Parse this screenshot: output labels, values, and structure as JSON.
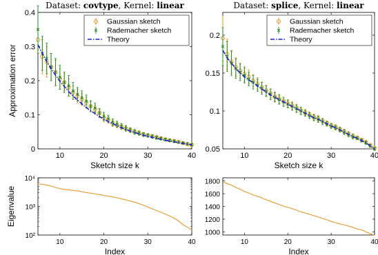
{
  "chart_data": [
    {
      "id": "covtype-error",
      "type": "line",
      "title_prefix": "Dataset: ",
      "title_dataset": "covtype",
      "title_mid": ",   Kernel: ",
      "title_kernel": "linear",
      "xlabel": "Sketch size k",
      "ylabel": "Approximation error",
      "xlim": [
        5,
        40
      ],
      "ylim": [
        0,
        0.4
      ],
      "xticks": [
        10,
        20,
        30,
        40
      ],
      "yticks": [
        0,
        0.1,
        0.2,
        0.3,
        0.4
      ],
      "ytick_labels": [
        "0",
        "0.1",
        "0.2",
        "0.3",
        "0.4"
      ],
      "legend_position": "top-right",
      "legend": [
        "Gaussian sketch",
        "Rademacher sketch",
        "Theory"
      ],
      "x": [
        5,
        6,
        7,
        8,
        9,
        10,
        11,
        12,
        13,
        14,
        15,
        16,
        17,
        18,
        19,
        20,
        21,
        22,
        23,
        24,
        25,
        26,
        27,
        28,
        29,
        30,
        31,
        32,
        33,
        34,
        35,
        36,
        37,
        38,
        39,
        40
      ],
      "series": [
        {
          "name": "Gaussian sketch",
          "values": [
            0.32,
            0.27,
            0.255,
            0.24,
            0.225,
            0.205,
            0.195,
            0.18,
            0.165,
            0.155,
            0.145,
            0.135,
            0.125,
            0.115,
            0.105,
            0.09,
            0.085,
            0.075,
            0.07,
            0.065,
            0.06,
            0.055,
            0.05,
            0.047,
            0.043,
            0.04,
            0.037,
            0.034,
            0.031,
            0.028,
            0.025,
            0.023,
            0.02,
            0.017,
            0.014,
            0.012
          ],
          "err": [
            0.03,
            0.05,
            0.045,
            0.04,
            0.035,
            0.03,
            0.025,
            0.025,
            0.02,
            0.02,
            0.018,
            0.016,
            0.015,
            0.013,
            0.012,
            0.011,
            0.01,
            0.009,
            0.008,
            0.008,
            0.007,
            0.007,
            0.006,
            0.006,
            0.005,
            0.005,
            0.005,
            0.004,
            0.004,
            0.004,
            0.004,
            0.003,
            0.003,
            0.003,
            0.003,
            0.003
          ]
        },
        {
          "name": "Rademacher sketch",
          "values": [
            0.35,
            0.28,
            0.265,
            0.24,
            0.225,
            0.21,
            0.195,
            0.185,
            0.17,
            0.16,
            0.15,
            0.14,
            0.125,
            0.12,
            0.105,
            0.095,
            0.088,
            0.078,
            0.072,
            0.066,
            0.06,
            0.055,
            0.05,
            0.046,
            0.042,
            0.039,
            0.036,
            0.033,
            0.03,
            0.027,
            0.025,
            0.022,
            0.02,
            0.017,
            0.015,
            0.012
          ],
          "err": [
            0.07,
            0.05,
            0.045,
            0.04,
            0.04,
            0.035,
            0.03,
            0.03,
            0.025,
            0.02,
            0.02,
            0.018,
            0.016,
            0.014,
            0.013,
            0.012,
            0.011,
            0.01,
            0.009,
            0.008,
            0.008,
            0.007,
            0.007,
            0.006,
            0.006,
            0.005,
            0.005,
            0.005,
            0.004,
            0.004,
            0.004,
            0.004,
            0.003,
            0.003,
            0.003,
            0.003
          ]
        },
        {
          "name": "Theory",
          "values": [
            0.305,
            0.28,
            0.256,
            0.235,
            0.216,
            0.198,
            0.183,
            0.168,
            0.155,
            0.143,
            0.132,
            0.121,
            0.112,
            0.103,
            0.095,
            0.087,
            0.08,
            0.074,
            0.068,
            0.062,
            0.057,
            0.052,
            0.048,
            0.044,
            0.04,
            0.037,
            0.034,
            0.031,
            0.028,
            0.025,
            0.023,
            0.021,
            0.018,
            0.016,
            0.014,
            0.012
          ]
        }
      ]
    },
    {
      "id": "splice-error",
      "type": "line",
      "title_prefix": "Dataset: ",
      "title_dataset": "splice",
      "title_mid": ",   Kernel: ",
      "title_kernel": "linear",
      "xlabel": "Sketch size k",
      "ylabel": "",
      "xlim": [
        5,
        40
      ],
      "ylim": [
        0.05,
        0.23
      ],
      "xticks": [
        10,
        20,
        30,
        40
      ],
      "yticks": [
        0.05,
        0.1,
        0.15,
        0.2
      ],
      "ytick_labels": [
        "0.05",
        "0.1",
        "0.15",
        "0.2"
      ],
      "legend_position": "top-right",
      "legend": [
        "Gaussian sketch",
        "Rademacher sketch",
        "Theory"
      ],
      "x": [
        5,
        6,
        7,
        8,
        9,
        10,
        11,
        12,
        13,
        14,
        15,
        16,
        17,
        18,
        19,
        20,
        21,
        22,
        23,
        24,
        25,
        26,
        27,
        28,
        29,
        30,
        31,
        32,
        33,
        34,
        35,
        36,
        37,
        38,
        39,
        40
      ],
      "series": [
        {
          "name": "Gaussian sketch",
          "values": [
            0.196,
            0.175,
            0.165,
            0.158,
            0.153,
            0.149,
            0.145,
            0.14,
            0.136,
            0.131,
            0.127,
            0.123,
            0.119,
            0.116,
            0.113,
            0.11,
            0.107,
            0.104,
            0.101,
            0.098,
            0.095,
            0.092,
            0.09,
            0.087,
            0.084,
            0.081,
            0.079,
            0.076,
            0.073,
            0.07,
            0.067,
            0.065,
            0.062,
            0.059,
            0.055,
            0.051
          ],
          "err": [
            0.03,
            0.02,
            0.015,
            0.012,
            0.01,
            0.01,
            0.009,
            0.008,
            0.008,
            0.007,
            0.007,
            0.006,
            0.006,
            0.006,
            0.005,
            0.005,
            0.005,
            0.005,
            0.004,
            0.004,
            0.004,
            0.004,
            0.004,
            0.003,
            0.003,
            0.003,
            0.003,
            0.003,
            0.003,
            0.003,
            0.003,
            0.002,
            0.002,
            0.002,
            0.002,
            0.002
          ]
        },
        {
          "name": "Rademacher sketch",
          "values": [
            0.185,
            0.172,
            0.163,
            0.156,
            0.151,
            0.147,
            0.142,
            0.138,
            0.134,
            0.13,
            0.126,
            0.122,
            0.118,
            0.115,
            0.112,
            0.109,
            0.106,
            0.103,
            0.1,
            0.097,
            0.094,
            0.091,
            0.089,
            0.086,
            0.083,
            0.08,
            0.078,
            0.075,
            0.072,
            0.069,
            0.066,
            0.064,
            0.061,
            0.058,
            0.054,
            0.05
          ],
          "err": [
            0.025,
            0.02,
            0.016,
            0.013,
            0.011,
            0.01,
            0.009,
            0.009,
            0.008,
            0.008,
            0.007,
            0.007,
            0.006,
            0.006,
            0.006,
            0.005,
            0.005,
            0.005,
            0.005,
            0.004,
            0.004,
            0.004,
            0.004,
            0.004,
            0.003,
            0.003,
            0.003,
            0.003,
            0.003,
            0.003,
            0.003,
            0.002,
            0.002,
            0.002,
            0.002,
            0.002
          ]
        },
        {
          "name": "Theory",
          "values": [
            0.18,
            0.17,
            0.163,
            0.156,
            0.15,
            0.145,
            0.141,
            0.137,
            0.133,
            0.129,
            0.125,
            0.121,
            0.118,
            0.115,
            0.112,
            0.109,
            0.106,
            0.103,
            0.1,
            0.097,
            0.094,
            0.091,
            0.089,
            0.086,
            0.083,
            0.08,
            0.078,
            0.075,
            0.072,
            0.069,
            0.066,
            0.064,
            0.061,
            0.058,
            0.054,
            0.05
          ]
        }
      ]
    },
    {
      "id": "covtype-eigen",
      "type": "line",
      "xlabel": "Index",
      "ylabel": "Eigenvalue",
      "xlim": [
        5,
        40
      ],
      "ylim": [
        100,
        10000
      ],
      "yscale": "log",
      "xticks": [
        10,
        20,
        30,
        40
      ],
      "yticks": [
        100,
        1000,
        10000
      ],
      "ytick_labels": [
        "10²",
        "10³",
        "10⁴"
      ],
      "x": [
        5,
        6,
        7,
        8,
        9,
        10,
        11,
        12,
        13,
        14,
        15,
        16,
        17,
        18,
        19,
        20,
        21,
        22,
        23,
        24,
        25,
        26,
        27,
        28,
        29,
        30,
        31,
        32,
        33,
        34,
        35,
        36,
        37,
        38,
        39,
        40
      ],
      "series": [
        {
          "values": [
            6100,
            5900,
            5600,
            5100,
            4600,
            4200,
            3900,
            3800,
            3600,
            3500,
            3250,
            3050,
            2900,
            2750,
            2600,
            2400,
            2300,
            2150,
            2000,
            1850,
            1700,
            1550,
            1400,
            1250,
            1100,
            950,
            830,
            720,
            620,
            540,
            460,
            390,
            310,
            230,
            190,
            150
          ]
        }
      ]
    },
    {
      "id": "splice-eigen",
      "type": "line",
      "xlabel": "Index",
      "ylabel": "",
      "xlim": [
        5,
        40
      ],
      "ylim": [
        950,
        1850
      ],
      "xticks": [
        10,
        20,
        30,
        40
      ],
      "yticks": [
        1000,
        1200,
        1400,
        1600,
        1800
      ],
      "ytick_labels": [
        "1000",
        "1200",
        "1400",
        "1600",
        "1800"
      ],
      "x": [
        5,
        6,
        7,
        8,
        9,
        10,
        11,
        12,
        13,
        14,
        15,
        16,
        17,
        18,
        19,
        20,
        21,
        22,
        23,
        24,
        25,
        26,
        27,
        28,
        29,
        30,
        31,
        32,
        33,
        34,
        35,
        36,
        37,
        38,
        39,
        40
      ],
      "series": [
        {
          "values": [
            1785,
            1760,
            1735,
            1700,
            1670,
            1635,
            1610,
            1580,
            1560,
            1535,
            1505,
            1480,
            1455,
            1430,
            1405,
            1385,
            1365,
            1340,
            1315,
            1295,
            1275,
            1255,
            1235,
            1210,
            1190,
            1165,
            1145,
            1125,
            1110,
            1090,
            1070,
            1045,
            1030,
            1000,
            970,
            945
          ]
        }
      ]
    }
  ],
  "colors": {
    "gaussian": "#e8962a",
    "rademacher": "#1f8a1f",
    "theory": "#1a1ad0",
    "eigen": "#e8962a",
    "axis": "#000000"
  }
}
